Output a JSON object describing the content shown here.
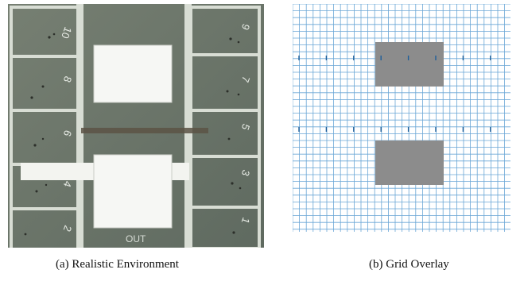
{
  "figure": {
    "subfigures": [
      {
        "id": "a",
        "caption": "(a) Realistic Environment",
        "lots_left": [
          "10",
          "8",
          "6",
          "4",
          "2"
        ],
        "lots_right": [
          "9",
          "7",
          "5",
          "3",
          "1"
        ],
        "floor_label": "OUT"
      },
      {
        "id": "b",
        "caption": "(b) Grid Overlay"
      }
    ]
  },
  "colors": {
    "floor": "#6f7a6f",
    "line": "#dfe4dc",
    "paper": "#f6f7f4",
    "grid": "#6aa6d6",
    "obstacle": "#8c8c8c"
  }
}
